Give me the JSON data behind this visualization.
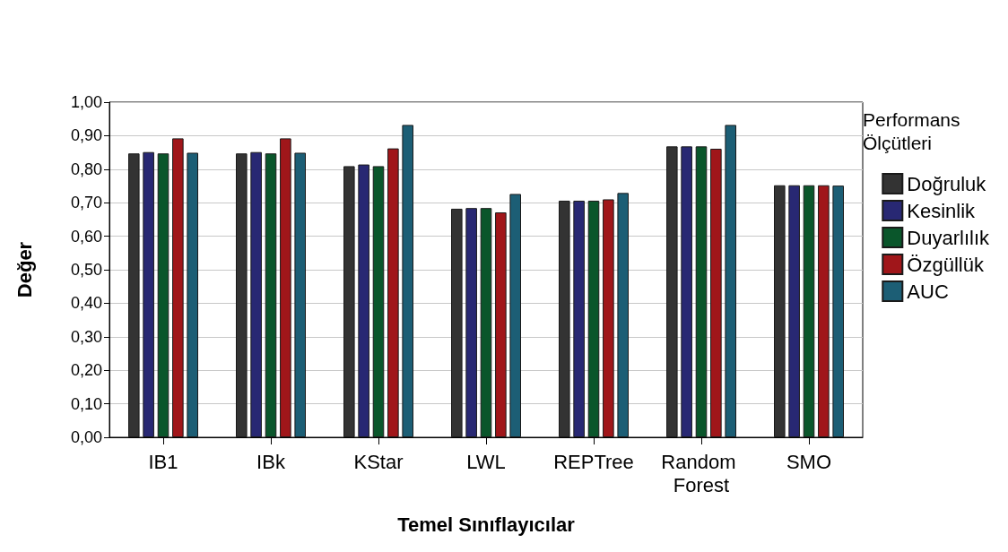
{
  "chart_data": {
    "type": "bar",
    "xlabel": "Temel Sınıflayıcılar",
    "ylabel": "Değer",
    "legend_title": "Performans Ölçütleri",
    "categories": [
      "IB1",
      "IBk",
      "KStar",
      "LWL",
      "REPTree",
      "Random Forest",
      "SMO"
    ],
    "series": [
      {
        "name": "Doğruluk",
        "color": "#333333",
        "values": [
          0.847,
          0.847,
          0.809,
          0.682,
          0.706,
          0.868,
          0.752
        ]
      },
      {
        "name": "Kesinlik",
        "color": "#282873",
        "values": [
          0.851,
          0.851,
          0.814,
          0.684,
          0.706,
          0.868,
          0.752
        ]
      },
      {
        "name": "Duyarlılık",
        "color": "#0a562b",
        "values": [
          0.847,
          0.847,
          0.809,
          0.684,
          0.706,
          0.868,
          0.752
        ]
      },
      {
        "name": "Özgüllük",
        "color": "#a0161a",
        "values": [
          0.892,
          0.892,
          0.862,
          0.671,
          0.71,
          0.861,
          0.752
        ]
      },
      {
        "name": "AUC",
        "color": "#1c5e75",
        "values": [
          0.849,
          0.849,
          0.932,
          0.726,
          0.729,
          0.932,
          0.751
        ]
      }
    ],
    "ylim": [
      0,
      1
    ],
    "yticks": [
      {
        "value": 0,
        "label": "0,00"
      },
      {
        "value": 0.1,
        "label": "0,10"
      },
      {
        "value": 0.2,
        "label": "0,20"
      },
      {
        "value": 0.3,
        "label": "0,30"
      },
      {
        "value": 0.4,
        "label": "0,40"
      },
      {
        "value": 0.5,
        "label": "0,50"
      },
      {
        "value": 0.6,
        "label": "0,60"
      },
      {
        "value": 0.7,
        "label": "0,70"
      },
      {
        "value": 0.8,
        "label": "0,80"
      },
      {
        "value": 0.9,
        "label": "0,90"
      },
      {
        "value": 1,
        "label": "1,00"
      }
    ],
    "grid": "y",
    "legend": "right"
  }
}
